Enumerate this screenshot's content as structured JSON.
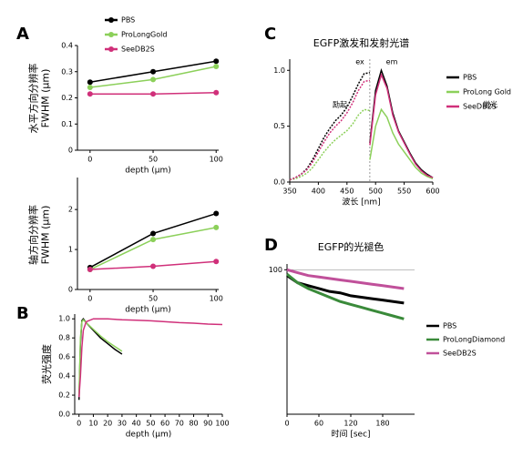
{
  "chart_data": [
    {
      "type": "line",
      "panel": "A",
      "ylabel": [
        "水平方向分辨率",
        "FWHM (μm)"
      ],
      "xlabel": "depth (μm)",
      "x": [
        0,
        50,
        100
      ],
      "xlim": [
        -10,
        102
      ],
      "xticks": [
        0,
        50,
        100
      ],
      "ylim": [
        0,
        0.4
      ],
      "yticks": [
        0,
        0.1,
        0.2,
        0.3,
        0.4
      ],
      "markers": true,
      "series": [
        {
          "name": "PBS",
          "color": "#000000",
          "values": [
            0.26,
            0.3,
            0.34
          ]
        },
        {
          "name": "ProLongGold",
          "color": "#8cd05a",
          "values": [
            0.24,
            0.27,
            0.32
          ]
        },
        {
          "name": "SeeDB2S",
          "color": "#d0307a",
          "values": [
            0.215,
            0.215,
            0.22
          ]
        }
      ]
    },
    {
      "type": "line",
      "ylabel": [
        "轴方向分辨率",
        "FWHM (μm)"
      ],
      "xlabel": "depth (μm)",
      "x": [
        0,
        50,
        100
      ],
      "xlim": [
        -10,
        102
      ],
      "xticks": [
        0,
        50,
        100
      ],
      "ylim": [
        0,
        2.8
      ],
      "yticks": [
        0,
        1,
        2
      ],
      "markers": true,
      "series": [
        {
          "color": "#000000",
          "values": [
            0.55,
            1.4,
            1.9
          ]
        },
        {
          "color": "#8cd05a",
          "values": [
            0.5,
            1.25,
            1.55
          ]
        },
        {
          "color": "#d0307a",
          "values": [
            0.5,
            0.58,
            0.7
          ]
        }
      ]
    },
    {
      "type": "line",
      "panel": "B",
      "ylabel": [
        "荧光强度"
      ],
      "xlabel": "depth (μm)",
      "x": [
        0,
        1,
        2,
        3,
        5,
        10,
        15,
        20,
        25,
        30,
        40,
        50,
        60,
        70,
        80,
        90,
        100
      ],
      "xlim": [
        -3,
        100
      ],
      "xticks": [
        0,
        10,
        20,
        30,
        40,
        50,
        60,
        70,
        80,
        90,
        100
      ],
      "ylim": [
        0,
        1.05
      ],
      "yticks": [
        {
          "value": 0,
          "label": "0.0"
        },
        0.2,
        0.4,
        0.6,
        0.8,
        {
          "value": 1,
          "label": "1.0"
        }
      ],
      "series": [
        {
          "color": "#000000",
          "values": [
            0.15,
            0.75,
            0.98,
            1.0,
            0.96,
            0.88,
            0.8,
            0.74,
            0.68,
            0.63,
            null,
            null,
            null,
            null,
            null,
            null,
            null
          ]
        },
        {
          "color": "#8cd05a",
          "values": [
            0.2,
            0.8,
            0.97,
            0.99,
            0.96,
            0.89,
            0.82,
            0.76,
            0.71,
            0.66,
            null,
            null,
            null,
            null,
            null,
            null,
            null
          ]
        },
        {
          "color": "#d0307a",
          "values": [
            0.18,
            0.4,
            0.7,
            0.88,
            0.97,
            1.0,
            1.0,
            1.0,
            0.995,
            0.99,
            0.985,
            0.98,
            0.97,
            0.96,
            0.955,
            0.945,
            0.94
          ]
        }
      ]
    },
    {
      "type": "line",
      "panel": "C",
      "title": "EGFP激发和发射光谱",
      "xlabel": "波长 [nm]",
      "annotations": [
        "ex",
        "em",
        "励起",
        "蛍光"
      ],
      "x": [
        350,
        360,
        370,
        380,
        390,
        400,
        410,
        420,
        430,
        440,
        450,
        460,
        470,
        480,
        490,
        500,
        510,
        520,
        530,
        540,
        550,
        560,
        570,
        580,
        590,
        600
      ],
      "xlim": [
        350,
        600
      ],
      "xticks": [
        350,
        400,
        450,
        500,
        550,
        600
      ],
      "ylim": [
        0,
        1.1
      ],
      "yticks": [
        {
          "value": 0,
          "label": "0.0"
        },
        0.5,
        {
          "value": 1,
          "label": "1.0"
        }
      ],
      "series": [
        {
          "name": "PBS",
          "color": "#000000",
          "ex": [
            0.02,
            0.04,
            0.07,
            0.12,
            0.2,
            0.3,
            0.4,
            0.48,
            0.55,
            0.6,
            0.67,
            0.77,
            0.88,
            0.97,
            0.98,
            null,
            null,
            null,
            null,
            null,
            null,
            null,
            null,
            null,
            null,
            null
          ],
          "em": [
            null,
            null,
            null,
            null,
            null,
            null,
            null,
            null,
            null,
            null,
            null,
            null,
            null,
            null,
            0.35,
            0.82,
            1.0,
            0.86,
            0.62,
            0.46,
            0.36,
            0.26,
            0.17,
            0.11,
            0.07,
            0.04
          ]
        },
        {
          "name": "ProLong Gold",
          "color": "#8cd05a",
          "ex": [
            0.02,
            0.03,
            0.05,
            0.08,
            0.13,
            0.2,
            0.27,
            0.33,
            0.38,
            0.42,
            0.46,
            0.52,
            0.6,
            0.65,
            0.64,
            null,
            null,
            null,
            null,
            null,
            null,
            null,
            null,
            null,
            null,
            null
          ],
          "em": [
            null,
            null,
            null,
            null,
            null,
            null,
            null,
            null,
            null,
            null,
            null,
            null,
            null,
            null,
            0.2,
            0.5,
            0.65,
            0.58,
            0.44,
            0.34,
            0.27,
            0.2,
            0.13,
            0.08,
            0.05,
            0.03
          ]
        },
        {
          "name": "SeeDB2S",
          "color": "#d0307a",
          "ex": [
            0.02,
            0.04,
            0.07,
            0.11,
            0.18,
            0.27,
            0.36,
            0.44,
            0.5,
            0.55,
            0.62,
            0.71,
            0.82,
            0.9,
            0.91,
            null,
            null,
            null,
            null,
            null,
            null,
            null,
            null,
            null,
            null,
            null
          ],
          "em": [
            null,
            null,
            null,
            null,
            null,
            null,
            null,
            null,
            null,
            null,
            null,
            null,
            null,
            null,
            0.33,
            0.78,
            0.96,
            0.84,
            0.6,
            0.45,
            0.35,
            0.25,
            0.16,
            0.1,
            0.06,
            0.04
          ]
        }
      ]
    },
    {
      "type": "line",
      "panel": "D",
      "title": "EGFP的光褪色",
      "xlabel": "时间 [sec]",
      "x": [
        0,
        20,
        40,
        60,
        80,
        100,
        120,
        140,
        160,
        180,
        200,
        220
      ],
      "xlim": [
        0,
        240
      ],
      "xticks": [
        0,
        60,
        120,
        180
      ],
      "ylim": [
        0,
        104
      ],
      "yticks": [
        100
      ],
      "series": [
        {
          "name": "PBS",
          "color": "#000000",
          "values": [
            96,
            91,
            89,
            87,
            85,
            84,
            82,
            81,
            80,
            79,
            78,
            77
          ]
        },
        {
          "name": "ProLongDiamond",
          "color": "#3a8a3a",
          "values": [
            97,
            91,
            87,
            84,
            81,
            78,
            76,
            74,
            72,
            70,
            68,
            66
          ]
        },
        {
          "name": "SeeDB2S",
          "color": "#c0509a",
          "values": [
            100,
            98,
            96,
            95,
            94,
            93,
            92,
            91,
            90,
            89,
            88,
            87
          ]
        }
      ]
    }
  ]
}
